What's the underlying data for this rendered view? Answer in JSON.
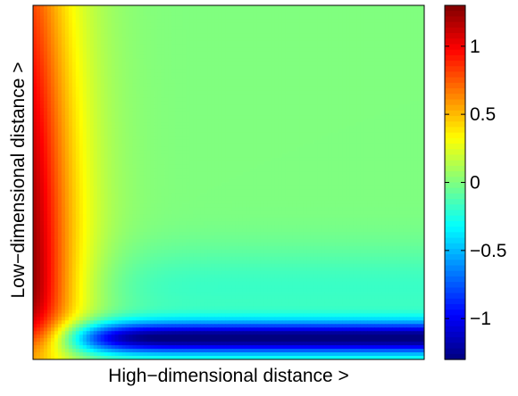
{
  "chart_data": {
    "type": "heatmap",
    "title": "",
    "xlabel": "High−dimensional distance >",
    "ylabel": "Low−dimensional distance >",
    "x_ticks": [],
    "y_ticks": [],
    "colormap": "jet",
    "colorbar": {
      "range": [
        -1.3,
        1.3
      ],
      "ticks": [
        -1,
        -0.5,
        0,
        0.5,
        1
      ],
      "tick_labels": [
        "−1",
        "−0.5",
        "0",
        "0.5",
        "1"
      ]
    },
    "grid": false
  }
}
